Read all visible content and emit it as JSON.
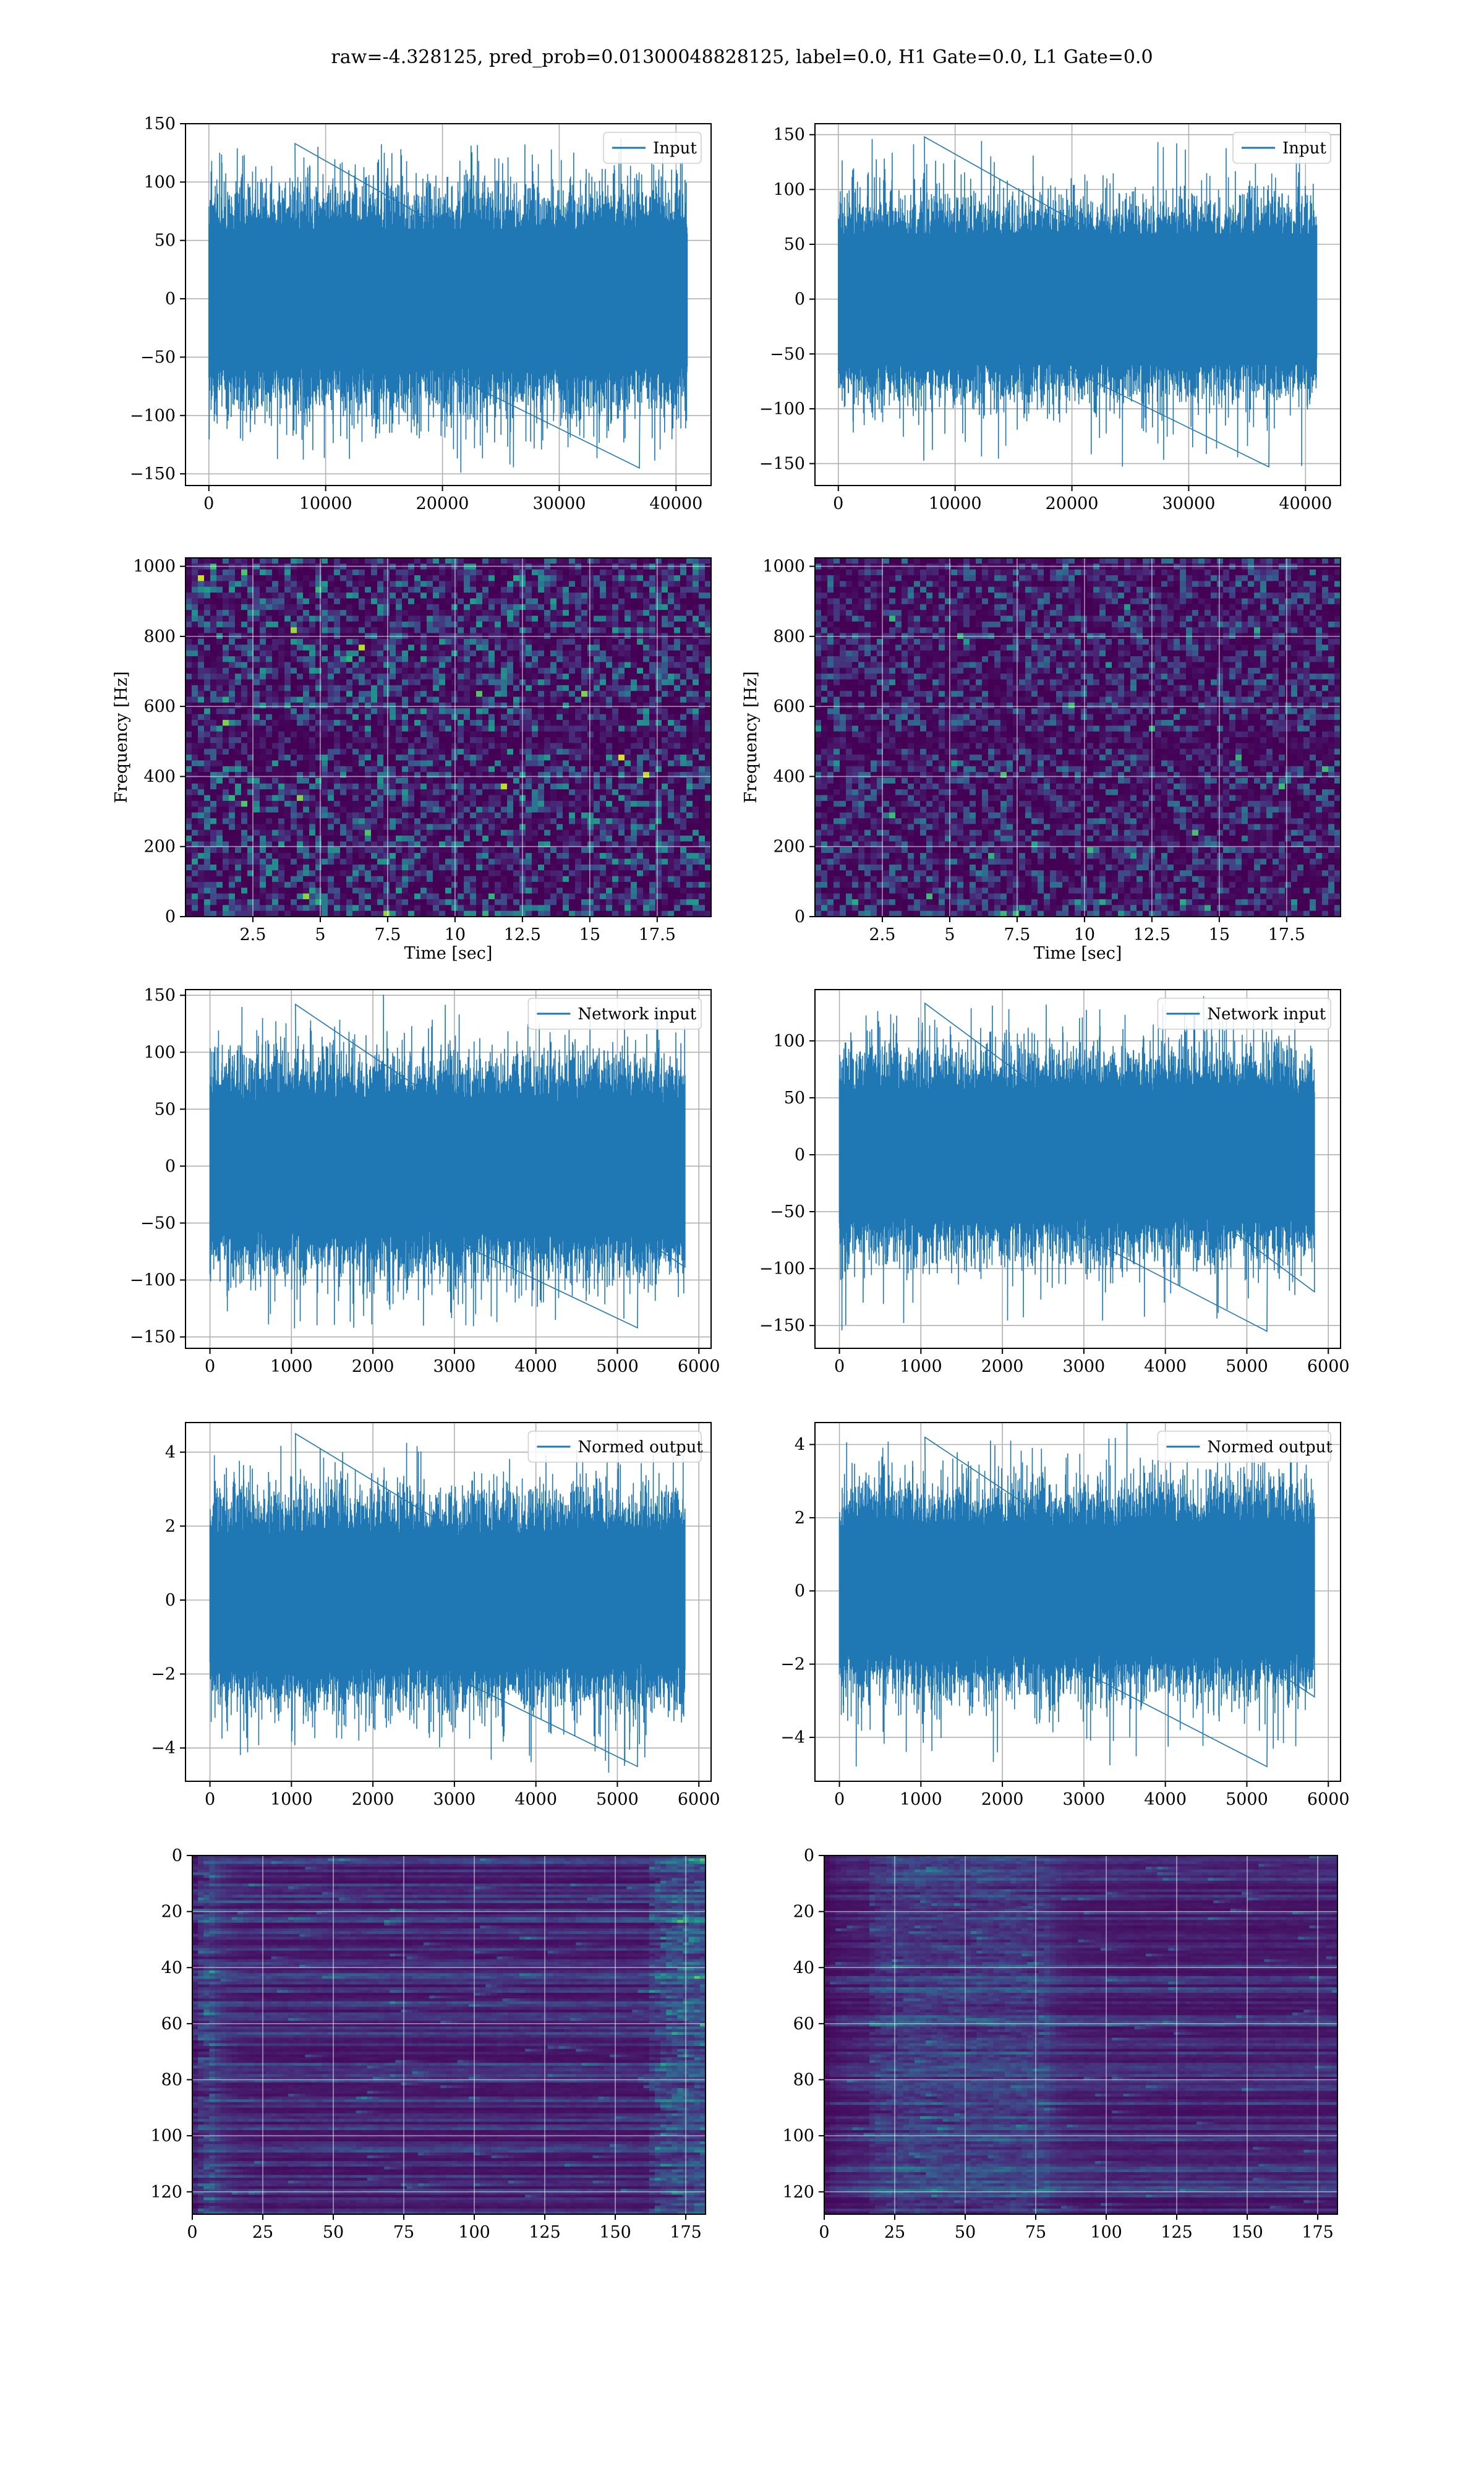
{
  "figure": {
    "suptitle": "raw=-4.328125, pred_prob=0.01300048828125, label=0.0, H1 Gate=0.0, L1 Gate=0.0"
  },
  "colors": {
    "line": "#1f77b4",
    "grid": "#b0b0b0",
    "spine": "#000000",
    "viridis_low": "#440154",
    "viridis_mid": "#21908d",
    "viridis_high": "#fde725"
  },
  "chart_data": [
    {
      "id": "input-h1",
      "type": "line",
      "legend": [
        "Input"
      ],
      "legend_position": "top-right",
      "grid": true,
      "xlim": [
        -2000,
        43000
      ],
      "ylim": [
        -160,
        150
      ],
      "xticks": [
        0,
        10000,
        20000,
        30000,
        40000
      ],
      "yticks": [
        -150,
        -100,
        -50,
        0,
        50,
        100,
        150
      ],
      "series": [
        {
          "x_range": [
            0,
            40960
          ],
          "envelope": [
            -100,
            100
          ],
          "band": [
            -60,
            60
          ],
          "peaks_max": 133,
          "peaks_min": -145
        }
      ]
    },
    {
      "id": "input-l1",
      "type": "line",
      "legend": [
        "Input"
      ],
      "legend_position": "top-right",
      "grid": true,
      "xlim": [
        -2000,
        43000
      ],
      "ylim": [
        -170,
        160
      ],
      "xticks": [
        0,
        10000,
        20000,
        30000,
        40000
      ],
      "yticks": [
        -150,
        -100,
        -50,
        0,
        50,
        100,
        150
      ],
      "series": [
        {
          "x_range": [
            0,
            40960
          ],
          "envelope": [
            -95,
            95
          ],
          "band": [
            -60,
            60
          ],
          "peaks_max": 148,
          "peaks_min": -153
        }
      ]
    },
    {
      "id": "spec-h1",
      "type": "heatmap",
      "xlabel": "Time [sec]",
      "ylabel": "Frequency [Hz]",
      "grid": true,
      "xlim": [
        0,
        19.5
      ],
      "ylim": [
        0,
        1024
      ],
      "xticks": [
        2.5,
        5.0,
        7.5,
        10.0,
        12.5,
        15.0,
        17.5
      ],
      "yticks": [
        0,
        200,
        400,
        600,
        800,
        1000
      ]
    },
    {
      "id": "spec-l1",
      "type": "heatmap",
      "xlabel": "Time [sec]",
      "ylabel": "Frequency [Hz]",
      "grid": true,
      "xlim": [
        0,
        19.5
      ],
      "ylim": [
        0,
        1024
      ],
      "xticks": [
        2.5,
        5.0,
        7.5,
        10.0,
        12.5,
        15.0,
        17.5
      ],
      "yticks": [
        0,
        200,
        400,
        600,
        800,
        1000
      ]
    },
    {
      "id": "net-h1",
      "type": "line",
      "legend": [
        "Network input"
      ],
      "legend_position": "top-right",
      "grid": true,
      "xlim": [
        -300,
        6150
      ],
      "ylim": [
        -160,
        155
      ],
      "xticks": [
        0,
        1000,
        2000,
        3000,
        4000,
        5000,
        6000
      ],
      "yticks": [
        -150,
        -100,
        -50,
        0,
        50,
        100,
        150
      ],
      "series": [
        {
          "x_range": [
            0,
            5830
          ],
          "envelope": [
            -100,
            100
          ],
          "band": [
            -45,
            45
          ],
          "peaks_max": 142,
          "peaks_min": -142
        }
      ]
    },
    {
      "id": "net-l1",
      "type": "line",
      "legend": [
        "Network input"
      ],
      "legend_position": "top-right",
      "grid": true,
      "xlim": [
        -300,
        6150
      ],
      "ylim": [
        -170,
        145
      ],
      "xticks": [
        0,
        1000,
        2000,
        3000,
        4000,
        5000,
        6000
      ],
      "yticks": [
        -150,
        -100,
        -50,
        0,
        50,
        100
      ],
      "series": [
        {
          "x_range": [
            0,
            5830
          ],
          "envelope": [
            -95,
            95
          ],
          "band": [
            -40,
            40
          ],
          "peaks_max": 133,
          "peaks_min": -155
        }
      ]
    },
    {
      "id": "norm-h1",
      "type": "line",
      "legend": [
        "Normed output"
      ],
      "legend_position": "top-right",
      "grid": true,
      "xlim": [
        -300,
        6150
      ],
      "ylim": [
        -4.9,
        4.8
      ],
      "xticks": [
        0,
        1000,
        2000,
        3000,
        4000,
        5000,
        6000
      ],
      "yticks": [
        -4,
        -2,
        0,
        2,
        4
      ],
      "series": [
        {
          "x_range": [
            0,
            5830
          ],
          "envelope": [
            -3,
            3
          ],
          "band": [
            -1.3,
            1.3
          ],
          "peaks_max": 4.5,
          "peaks_min": -4.5
        }
      ]
    },
    {
      "id": "norm-l1",
      "type": "line",
      "legend": [
        "Normed output"
      ],
      "legend_position": "top-right",
      "grid": true,
      "xlim": [
        -300,
        6150
      ],
      "ylim": [
        -5.2,
        4.6
      ],
      "xticks": [
        0,
        1000,
        2000,
        3000,
        4000,
        5000,
        6000
      ],
      "yticks": [
        -4,
        -2,
        0,
        2,
        4
      ],
      "series": [
        {
          "x_range": [
            0,
            5830
          ],
          "envelope": [
            -3,
            3
          ],
          "band": [
            -1.3,
            1.3
          ],
          "peaks_max": 4.2,
          "peaks_min": -4.8
        }
      ]
    },
    {
      "id": "feat-h1",
      "type": "heatmap",
      "grid": true,
      "xlim": [
        0,
        182
      ],
      "ylim": [
        128,
        0
      ],
      "y_inverted": true,
      "xticks": [
        0,
        25,
        50,
        75,
        100,
        125,
        150,
        175
      ],
      "yticks": [
        0,
        20,
        40,
        60,
        80,
        100,
        120
      ]
    },
    {
      "id": "feat-l1",
      "type": "heatmap",
      "grid": true,
      "xlim": [
        0,
        182
      ],
      "ylim": [
        128,
        0
      ],
      "y_inverted": true,
      "xticks": [
        0,
        25,
        50,
        75,
        100,
        125,
        150,
        175
      ],
      "yticks": [
        0,
        20,
        40,
        60,
        80,
        100,
        120
      ]
    }
  ]
}
